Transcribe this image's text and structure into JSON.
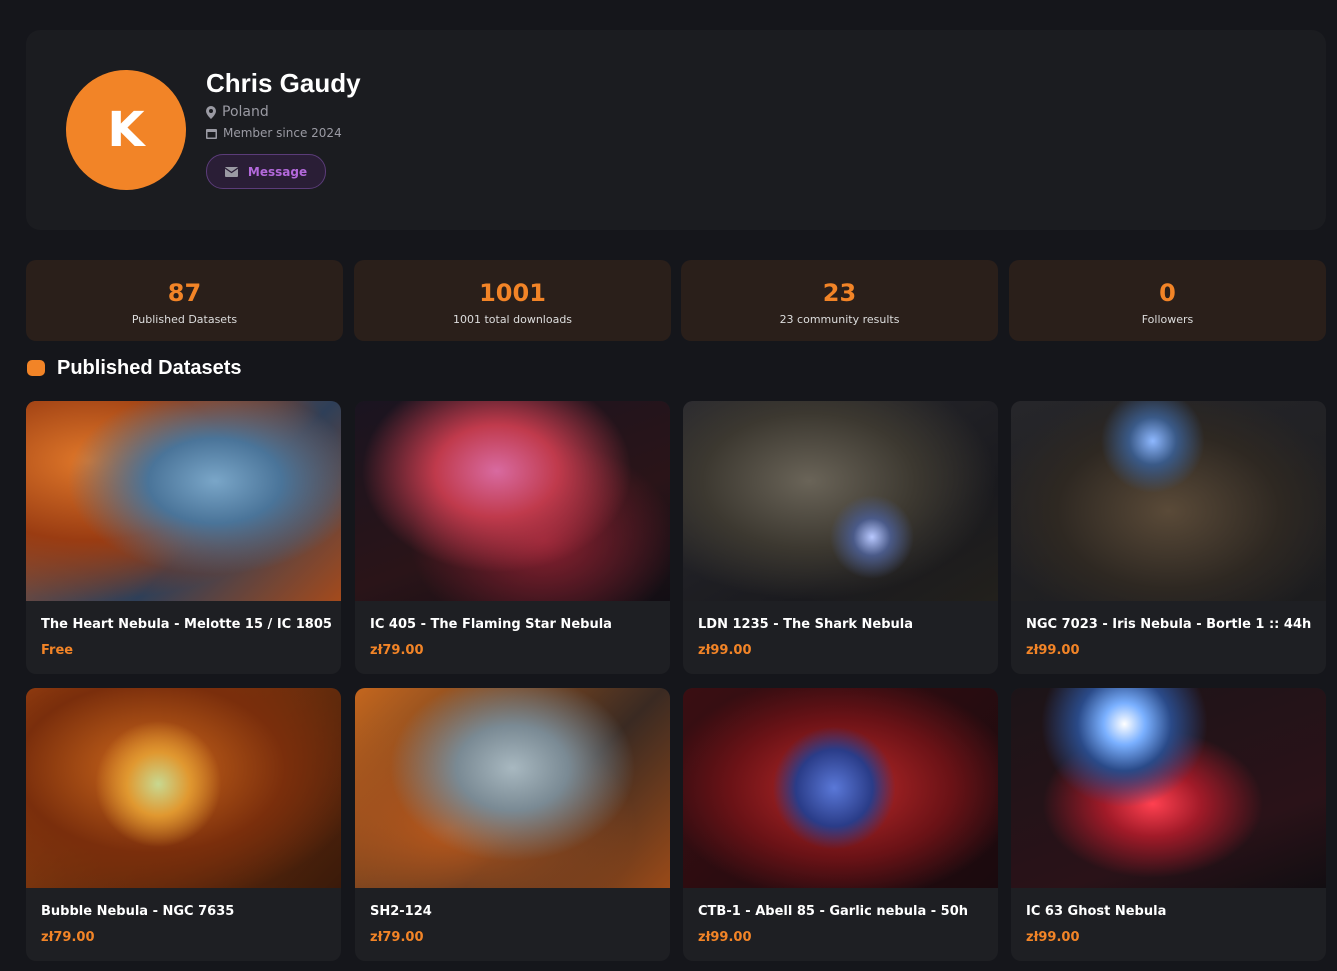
{
  "profile": {
    "avatar_letter": "K",
    "name": "Chris Gaudy",
    "location": "Poland",
    "member_since": "Member since 2024",
    "button": "Message"
  },
  "stats": [
    {
      "value": 87,
      "label": "Published Datasets"
    },
    {
      "value": 1001,
      "label": "1001 total downloads"
    },
    {
      "value": 23,
      "label": "23 community results"
    },
    {
      "value": 0,
      "label": "Followers"
    }
  ],
  "section_title": "Published Datasets",
  "datasets": [
    {
      "title": "The Heart Nebula - Melotte 15 / IC 1805",
      "price": "Free"
    },
    {
      "title": "IC 405 - The Flaming Star Nebula",
      "price": "zł79.00"
    },
    {
      "title": "LDN 1235 - The Shark Nebula",
      "price": "zł99.00"
    },
    {
      "title": "NGC 7023 - Iris Nebula - Bortle 1 :: 44h",
      "price": "zł99.00"
    },
    {
      "title": "Bubble Nebula - NGC 7635",
      "price": "zł79.00"
    },
    {
      "title": "SH2-124",
      "price": "zł79.00"
    },
    {
      "title": "CTB-1 - Abell 85 - Garlic nebula - 50h",
      "price": "zł99.00"
    },
    {
      "title": "IC 63 Ghost Nebula",
      "price": "zł99.00"
    }
  ]
}
